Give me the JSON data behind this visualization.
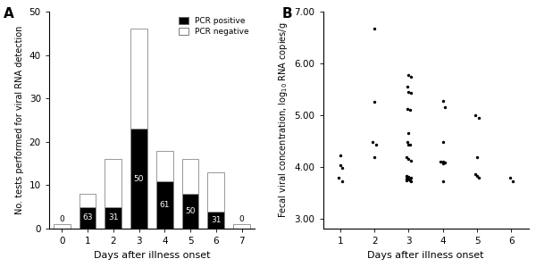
{
  "bar_days": [
    0,
    1,
    2,
    3,
    4,
    5,
    6,
    7
  ],
  "bar_total": [
    1,
    8,
    16,
    46,
    18,
    16,
    13,
    1
  ],
  "bar_positive": [
    0,
    5,
    5,
    23,
    11,
    8,
    4,
    0
  ],
  "bar_labels": [
    "0",
    "63",
    "31",
    "50",
    "61",
    "50",
    "31",
    "0"
  ],
  "ylim_A": [
    0,
    50
  ],
  "yticks_A": [
    0,
    10,
    20,
    30,
    40,
    50
  ],
  "ylabel_A": "No. tests performed for viral RNA detection",
  "xlabel_A": "Days after illness onset",
  "color_positive": "#000000",
  "color_negative": "#ffffff",
  "legend_labels": [
    "PCR positive",
    "PCR negative"
  ],
  "scatter_data": {
    "1": [
      4.22,
      4.02,
      3.98,
      3.78,
      3.72
    ],
    "2": [
      6.67,
      5.25,
      4.48,
      4.43,
      4.18
    ],
    "3": [
      5.77,
      5.73,
      5.55,
      5.45,
      5.42,
      5.12,
      5.1,
      4.65,
      4.47,
      4.43,
      4.43,
      4.18,
      4.15,
      4.12,
      3.82,
      3.8,
      3.78,
      3.77,
      3.77,
      3.75,
      3.74,
      3.73,
      3.72
    ],
    "4": [
      5.28,
      5.15,
      4.48,
      4.1,
      4.1,
      4.08,
      4.07,
      3.72
    ],
    "5": [
      5.0,
      4.95,
      4.18,
      3.85,
      3.82,
      3.78
    ],
    "6": [
      3.78,
      3.72
    ]
  },
  "ylim_B": [
    2.8,
    7.0
  ],
  "yticks_B": [
    3.0,
    4.0,
    5.0,
    6.0,
    7.0
  ],
  "xlabel_B": "Days after illness onset",
  "xticks_B": [
    1,
    2,
    3,
    4,
    5,
    6
  ],
  "panel_A_label": "A",
  "panel_B_label": "B",
  "background_color": "#ffffff"
}
